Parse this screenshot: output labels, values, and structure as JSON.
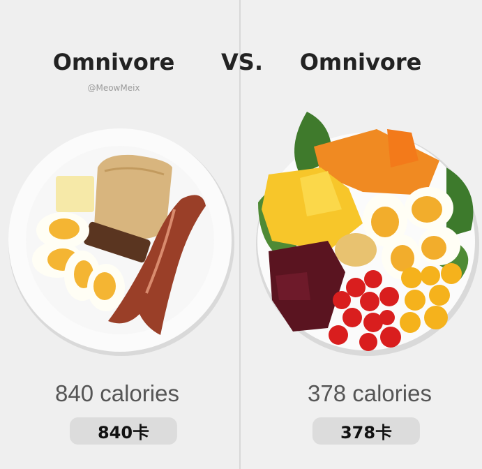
{
  "header": {
    "left_title": "Omnivore",
    "vs": "VS.",
    "right_title": "Omnivore",
    "credit": "@MeowMeix"
  },
  "panels": [
    {
      "calories": "840 calories",
      "calories_cn": "840卡"
    },
    {
      "calories": "378 calories",
      "calories_cn": "378卡"
    }
  ]
}
